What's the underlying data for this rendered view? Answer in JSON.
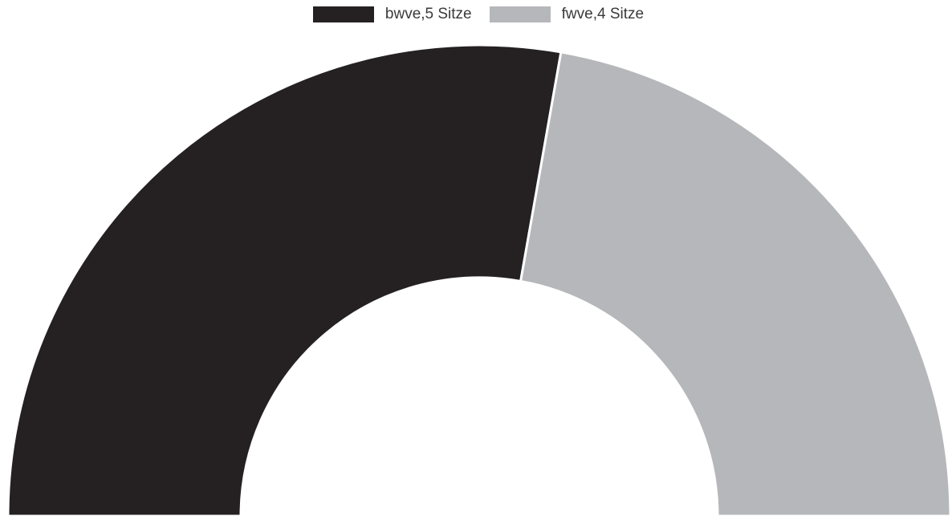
{
  "chart_data": {
    "type": "pie",
    "variant": "semi-donut",
    "legend_position": "top-center",
    "categories": [
      "bwve,5 Sitze",
      "fwve,4 Sitze"
    ],
    "values": [
      5,
      4
    ],
    "unit": "Sitze",
    "colors": [
      "#252122",
      "#b6b7ba"
    ]
  },
  "legend": {
    "items": [
      {
        "label": "bwve,5 Sitze",
        "color": "#252122"
      },
      {
        "label": "fwve,4 Sitze",
        "color": "#b6b7ba"
      }
    ]
  }
}
